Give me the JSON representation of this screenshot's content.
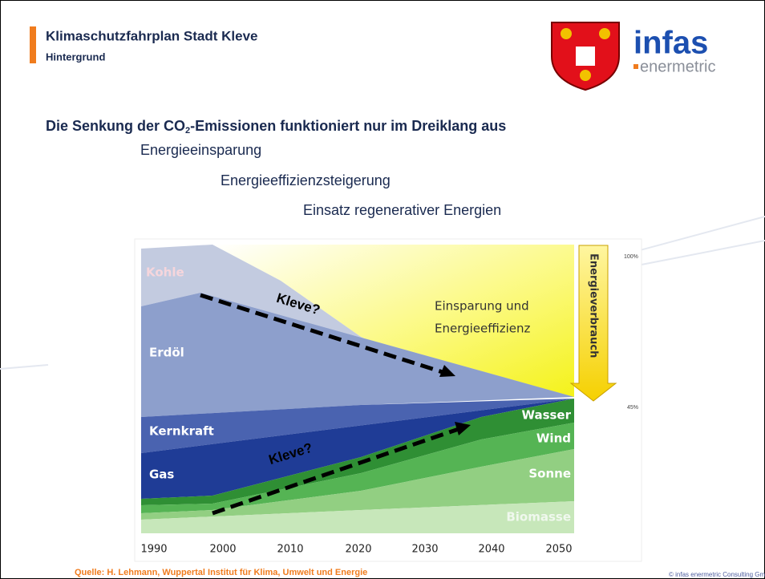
{
  "header": {
    "title": "Klimaschutzfahrplan Stadt Kleve",
    "subtitle": "Hintergrund"
  },
  "logo": {
    "brand": "infas",
    "sub": "enermetric"
  },
  "heading": {
    "before": "Die Senkung der CO",
    "subscript": "2",
    "after": "-Emissionen funktioniert nur im Dreiklang aus"
  },
  "points": [
    "Energieeinsparung",
    "Energieeffizienzsteigerung",
    "Einsatz regenerativer Energien"
  ],
  "figure": {
    "areas": [
      "Kohle",
      "Erdöl",
      "Kernkraft",
      "Gas",
      "Wasser",
      "Wind",
      "Sonne",
      "Biomasse"
    ],
    "savings": [
      "Einsparung und",
      "Energieeffizienz"
    ],
    "consumption": "Energieverbrauch",
    "top_percent": "100%",
    "bottom_percent": "45%",
    "arrow_labels": [
      "Kleve?",
      "Kleve?"
    ],
    "years": [
      "1990",
      "2000",
      "2010",
      "2020",
      "2030",
      "2040",
      "2050"
    ]
  },
  "source": "Quelle: H. Lehmann, Wuppertal Institut für Klima, Umwelt und Energie",
  "copyright": "© infas enermetric Consulting GmbH"
}
